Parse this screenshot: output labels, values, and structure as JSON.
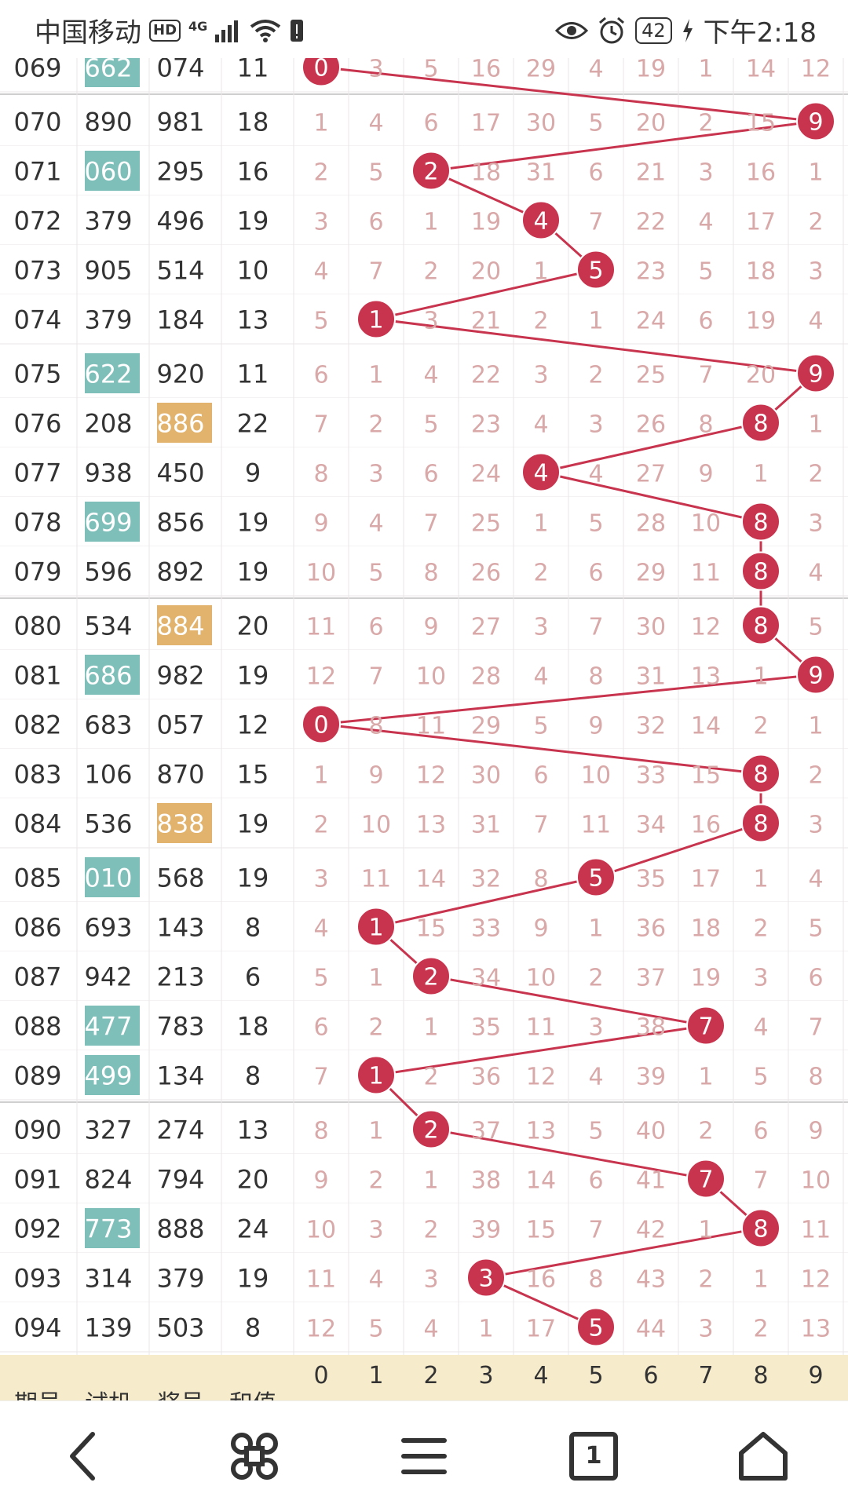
{
  "status": {
    "carrier": "中国移动",
    "hd": "HD",
    "network": "4G",
    "battery": "42",
    "time": "下午2:18"
  },
  "colors": {
    "row_text": "#333333",
    "miss_text": "#d9a8a8",
    "hit_ball": "#c8344e",
    "teal_bg": "#7fbfba",
    "orange_bg": "#e2b36c",
    "footer_bg": "#f6ebcb",
    "grid": "#e9e6e6"
  },
  "table": {
    "rows": [
      {
        "period": "069",
        "test": "662",
        "draw": "074",
        "sum": "11",
        "hl": "test",
        "cells": [
          "0",
          "3",
          "5",
          "16",
          "29",
          "4",
          "19",
          "1",
          "14",
          "12"
        ],
        "hit": 0
      },
      {
        "period": "070",
        "test": "890",
        "draw": "981",
        "sum": "18",
        "hl": "",
        "cells": [
          "1",
          "4",
          "6",
          "17",
          "30",
          "5",
          "20",
          "2",
          "15",
          "9"
        ],
        "hit": 9
      },
      {
        "period": "071",
        "test": "060",
        "draw": "295",
        "sum": "16",
        "hl": "test",
        "cells": [
          "2",
          "5",
          "2",
          "18",
          "31",
          "6",
          "21",
          "3",
          "16",
          "1"
        ],
        "hit": 2
      },
      {
        "period": "072",
        "test": "379",
        "draw": "496",
        "sum": "19",
        "hl": "",
        "cells": [
          "3",
          "6",
          "1",
          "19",
          "4",
          "7",
          "22",
          "4",
          "17",
          "2"
        ],
        "hit": 4
      },
      {
        "period": "073",
        "test": "905",
        "draw": "514",
        "sum": "10",
        "hl": "",
        "cells": [
          "4",
          "7",
          "2",
          "20",
          "1",
          "5",
          "23",
          "5",
          "18",
          "3"
        ],
        "hit": 5
      },
      {
        "period": "074",
        "test": "379",
        "draw": "184",
        "sum": "13",
        "hl": "",
        "cells": [
          "5",
          "1",
          "3",
          "21",
          "2",
          "1",
          "24",
          "6",
          "19",
          "4"
        ],
        "hit": 1
      },
      {
        "period": "075",
        "test": "622",
        "draw": "920",
        "sum": "11",
        "hl": "test",
        "cells": [
          "6",
          "1",
          "4",
          "22",
          "3",
          "2",
          "25",
          "7",
          "20",
          "9"
        ],
        "hit": 9
      },
      {
        "period": "076",
        "test": "208",
        "draw": "886",
        "sum": "22",
        "hl": "draw",
        "cells": [
          "7",
          "2",
          "5",
          "23",
          "4",
          "3",
          "26",
          "8",
          "8",
          "1"
        ],
        "hit": 8
      },
      {
        "period": "077",
        "test": "938",
        "draw": "450",
        "sum": "9",
        "hl": "",
        "cells": [
          "8",
          "3",
          "6",
          "24",
          "4",
          "4",
          "27",
          "9",
          "1",
          "2"
        ],
        "hit": 4
      },
      {
        "period": "078",
        "test": "699",
        "draw": "856",
        "sum": "19",
        "hl": "test",
        "cells": [
          "9",
          "4",
          "7",
          "25",
          "1",
          "5",
          "28",
          "10",
          "8",
          "3"
        ],
        "hit": 8
      },
      {
        "period": "079",
        "test": "596",
        "draw": "892",
        "sum": "19",
        "hl": "",
        "cells": [
          "10",
          "5",
          "8",
          "26",
          "2",
          "6",
          "29",
          "11",
          "8",
          "4"
        ],
        "hit": 8
      },
      {
        "period": "080",
        "test": "534",
        "draw": "884",
        "sum": "20",
        "hl": "draw",
        "cells": [
          "11",
          "6",
          "9",
          "27",
          "3",
          "7",
          "30",
          "12",
          "8",
          "5"
        ],
        "hit": 8
      },
      {
        "period": "081",
        "test": "686",
        "draw": "982",
        "sum": "19",
        "hl": "test",
        "cells": [
          "12",
          "7",
          "10",
          "28",
          "4",
          "8",
          "31",
          "13",
          "1",
          "9"
        ],
        "hit": 9
      },
      {
        "period": "082",
        "test": "683",
        "draw": "057",
        "sum": "12",
        "hl": "",
        "cells": [
          "0",
          "8",
          "11",
          "29",
          "5",
          "9",
          "32",
          "14",
          "2",
          "1"
        ],
        "hit": 0
      },
      {
        "period": "083",
        "test": "106",
        "draw": "870",
        "sum": "15",
        "hl": "",
        "cells": [
          "1",
          "9",
          "12",
          "30",
          "6",
          "10",
          "33",
          "15",
          "8",
          "2"
        ],
        "hit": 8
      },
      {
        "period": "084",
        "test": "536",
        "draw": "838",
        "sum": "19",
        "hl": "draw",
        "cells": [
          "2",
          "10",
          "13",
          "31",
          "7",
          "11",
          "34",
          "16",
          "8",
          "3"
        ],
        "hit": 8
      },
      {
        "period": "085",
        "test": "010",
        "draw": "568",
        "sum": "19",
        "hl": "test",
        "cells": [
          "3",
          "11",
          "14",
          "32",
          "8",
          "5",
          "35",
          "17",
          "1",
          "4"
        ],
        "hit": 5
      },
      {
        "period": "086",
        "test": "693",
        "draw": "143",
        "sum": "8",
        "hl": "",
        "cells": [
          "4",
          "1",
          "15",
          "33",
          "9",
          "1",
          "36",
          "18",
          "2",
          "5"
        ],
        "hit": 1
      },
      {
        "period": "087",
        "test": "942",
        "draw": "213",
        "sum": "6",
        "hl": "",
        "cells": [
          "5",
          "1",
          "2",
          "34",
          "10",
          "2",
          "37",
          "19",
          "3",
          "6"
        ],
        "hit": 2
      },
      {
        "period": "088",
        "test": "477",
        "draw": "783",
        "sum": "18",
        "hl": "test",
        "cells": [
          "6",
          "2",
          "1",
          "35",
          "11",
          "3",
          "38",
          "7",
          "4",
          "7"
        ],
        "hit": 7
      },
      {
        "period": "089",
        "test": "499",
        "draw": "134",
        "sum": "8",
        "hl": "test",
        "cells": [
          "7",
          "1",
          "2",
          "36",
          "12",
          "4",
          "39",
          "1",
          "5",
          "8"
        ],
        "hit": 1
      },
      {
        "period": "090",
        "test": "327",
        "draw": "274",
        "sum": "13",
        "hl": "",
        "cells": [
          "8",
          "1",
          "2",
          "37",
          "13",
          "5",
          "40",
          "2",
          "6",
          "9"
        ],
        "hit": 2
      },
      {
        "period": "091",
        "test": "824",
        "draw": "794",
        "sum": "20",
        "hl": "",
        "cells": [
          "9",
          "2",
          "1",
          "38",
          "14",
          "6",
          "41",
          "7",
          "7",
          "10"
        ],
        "hit": 7
      },
      {
        "period": "092",
        "test": "773",
        "draw": "888",
        "sum": "24",
        "hl": "test",
        "cells": [
          "10",
          "3",
          "2",
          "39",
          "15",
          "7",
          "42",
          "1",
          "8",
          "11"
        ],
        "hit": 8
      },
      {
        "period": "093",
        "test": "314",
        "draw": "379",
        "sum": "19",
        "hl": "",
        "cells": [
          "11",
          "4",
          "3",
          "3",
          "16",
          "8",
          "43",
          "2",
          "1",
          "12"
        ],
        "hit": 3
      },
      {
        "period": "094",
        "test": "139",
        "draw": "503",
        "sum": "8",
        "hl": "",
        "cells": [
          "12",
          "5",
          "4",
          "1",
          "17",
          "5",
          "44",
          "3",
          "2",
          "13"
        ],
        "hit": 5
      }
    ],
    "footer_left": [
      "期号",
      "试机",
      "奖号",
      "和值"
    ],
    "footer_digits": [
      "0",
      "1",
      "2",
      "3",
      "4",
      "5",
      "6",
      "7",
      "8",
      "9"
    ]
  },
  "nav": {
    "back": "back-icon",
    "multi": "command-icon",
    "menu": "menu-icon",
    "tabs_count": "1",
    "home": "home-icon"
  }
}
